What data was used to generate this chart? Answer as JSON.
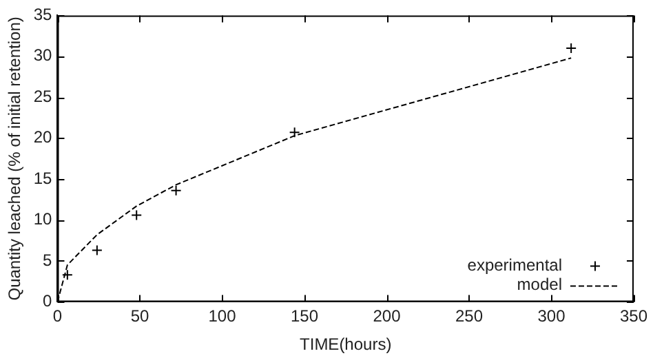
{
  "chart_data": {
    "type": "line",
    "xlabel": "TIME(hours)",
    "ylabel": "Quantity leached (% of initial retention)",
    "xlim": [
      0,
      350
    ],
    "xticks": [
      0,
      50,
      100,
      150,
      200,
      250,
      300,
      350
    ],
    "ylim": [
      0,
      35
    ],
    "yticks": [
      0,
      5,
      10,
      15,
      20,
      25,
      30,
      35
    ],
    "grid": false,
    "legend": "bottom right",
    "series": [
      {
        "name": "experimental",
        "type": "scatter",
        "marker": "cross",
        "color": "#000000",
        "x": [
          6,
          24,
          48,
          72,
          144,
          312
        ],
        "values": [
          3.3,
          6.3,
          10.6,
          13.6,
          20.7,
          31.0
        ]
      },
      {
        "name": "model",
        "type": "line",
        "marker": "none",
        "line_style": "dashed",
        "color": "#000000",
        "x": [
          0,
          6,
          24,
          48,
          72,
          144,
          312
        ],
        "values": [
          0,
          4.5,
          8.2,
          11.7,
          14.3,
          20.3,
          29.8
        ]
      }
    ]
  }
}
